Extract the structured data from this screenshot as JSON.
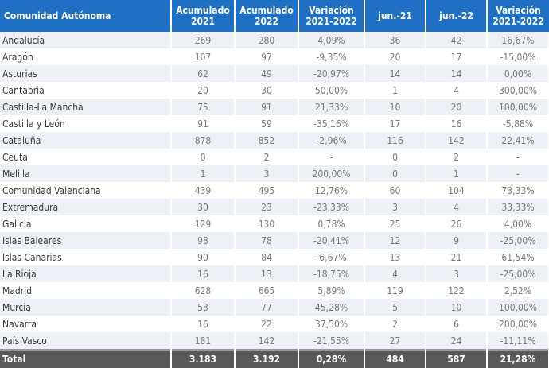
{
  "colors": {
    "header": "#1f6fc4",
    "total": "#595959",
    "stripe": "#edf1f6"
  },
  "headers": [
    "Comunidad Autónoma",
    "Acumulado\n2021",
    "Acumulado\n2022",
    "Variación\n2021-2022",
    "jun.-21",
    "jun.-22",
    "Variación\n2021-2022"
  ],
  "rows": [
    [
      "Andalucía",
      "269",
      "280",
      "4,09%",
      "36",
      "42",
      "16,67%"
    ],
    [
      "Aragón",
      "107",
      "97",
      "-9,35%",
      "20",
      "17",
      "-15,00%"
    ],
    [
      "Asturias",
      "62",
      "49",
      "-20,97%",
      "14",
      "14",
      "0,00%"
    ],
    [
      "Cantabria",
      "20",
      "30",
      "50,00%",
      "1",
      "4",
      "300,00%"
    ],
    [
      "Castilla-La Mancha",
      "75",
      "91",
      "21,33%",
      "10",
      "20",
      "100,00%"
    ],
    [
      "Castilla y León",
      "91",
      "59",
      "-35,16%",
      "17",
      "16",
      "-5,88%"
    ],
    [
      "Cataluña",
      "878",
      "852",
      "-2,96%",
      "116",
      "142",
      "22,41%"
    ],
    [
      "Ceuta",
      "0",
      "2",
      "-",
      "0",
      "2",
      "-"
    ],
    [
      "Melilla",
      "1",
      "3",
      "200,00%",
      "0",
      "1",
      "-"
    ],
    [
      "Comunidad Valenciana",
      "439",
      "495",
      "12,76%",
      "60",
      "104",
      "73,33%"
    ],
    [
      "Extremadura",
      "30",
      "23",
      "-23,33%",
      "3",
      "4",
      "33,33%"
    ],
    [
      "Galicia",
      "129",
      "130",
      "0,78%",
      "25",
      "26",
      "4,00%"
    ],
    [
      "Islas Baleares",
      "98",
      "78",
      "-20,41%",
      "12",
      "9",
      "-25,00%"
    ],
    [
      "Islas Canarias",
      "90",
      "84",
      "-6,67%",
      "13",
      "21",
      "61,54%"
    ],
    [
      "La Rioja",
      "16",
      "13",
      "-18,75%",
      "4",
      "3",
      "-25,00%"
    ],
    [
      "Madrid",
      "628",
      "665",
      "5,89%",
      "119",
      "122",
      "2,52%"
    ],
    [
      "Murcia",
      "53",
      "77",
      "45,28%",
      "5",
      "10",
      "100,00%"
    ],
    [
      "Navarra",
      "16",
      "22",
      "37,50%",
      "2",
      "6",
      "200,00%"
    ],
    [
      "País Vasco",
      "181",
      "142",
      "-21,55%",
      "27",
      "24",
      "-11,11%"
    ]
  ],
  "total": [
    "Total",
    "3.183",
    "3.192",
    "0,28%",
    "484",
    "587",
    "21,28%"
  ]
}
